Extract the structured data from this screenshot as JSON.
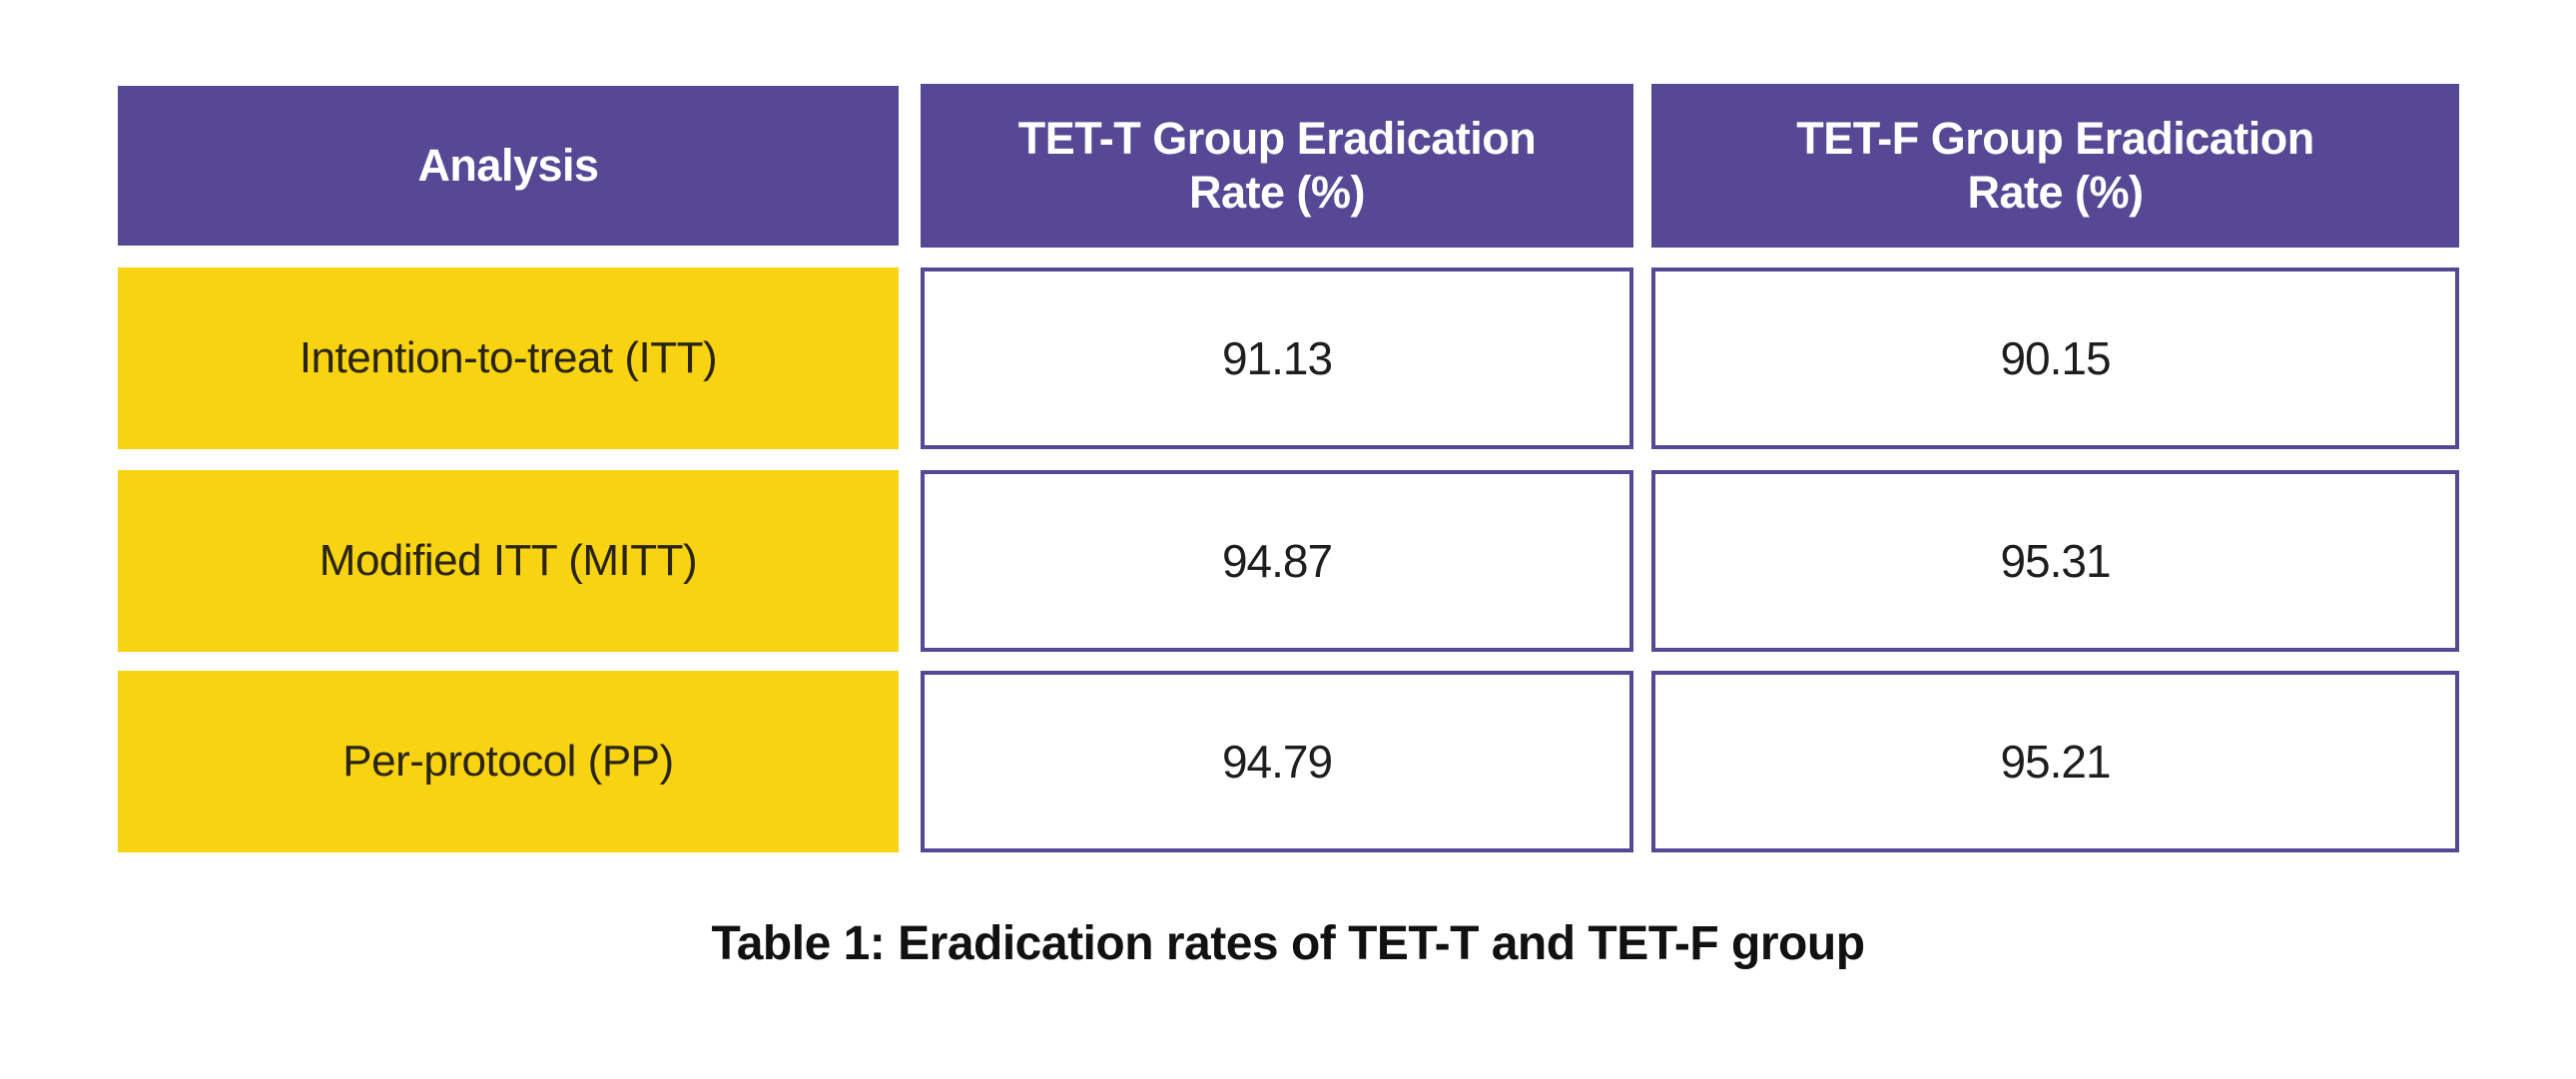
{
  "table": {
    "headers": [
      "Analysis",
      "TET-T Group Eradication Rate (%)",
      "TET-F Group Eradication Rate (%)"
    ],
    "header_lines": [
      [
        "Analysis"
      ],
      [
        "TET-T Group Eradication",
        "Rate (%)"
      ],
      [
        "TET-F Group Eradication",
        "Rate (%)"
      ]
    ],
    "rows": [
      {
        "analysis": "Intention-to-treat (ITT)",
        "tet_t": "91.13",
        "tet_f": "90.15"
      },
      {
        "analysis": "Modified ITT (MITT)",
        "tet_t": "94.87",
        "tet_f": "95.31"
      },
      {
        "analysis": "Per-protocol (PP)",
        "tet_t": "94.79",
        "tet_f": "95.21"
      }
    ]
  },
  "caption": "Table 1: Eradication rates of TET-T and TET-F group",
  "colors": {
    "header_bg": "#574896",
    "label_bg": "#f7d312",
    "cell_border": "#574896"
  }
}
